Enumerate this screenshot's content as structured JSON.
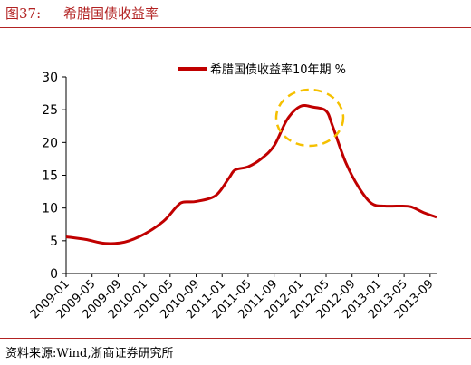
{
  "figure": {
    "label": "图37:",
    "title": "希腊国债收益率",
    "source": "资料来源:Wind,浙商证券研究所"
  },
  "colors": {
    "line": "#c00000",
    "highlight": "#f5c000",
    "accent": "#b22222"
  },
  "chart_data": {
    "type": "line",
    "title": "",
    "xlabel": "",
    "ylabel": "",
    "ylim": [
      0,
      30
    ],
    "yticks": [
      0,
      5,
      10,
      15,
      20,
      25,
      30
    ],
    "xtick_labels": [
      "2009-01",
      "2009-05",
      "2009-09",
      "2010-01",
      "2010-05",
      "2010-09",
      "2011-01",
      "2011-05",
      "2011-09",
      "2012-01",
      "2012-05",
      "2012-09",
      "2013-01",
      "2013-05",
      "2013-09"
    ],
    "x_start": "2009-01",
    "x_end": "2013-10",
    "grid": false,
    "legend_position": "top-center",
    "annotation": "dashed circle around 2012 peak",
    "series": [
      {
        "name": "希腊国债收益率10年期 %",
        "points": [
          [
            "2009-01",
            5.6
          ],
          [
            "2009-04",
            5.2
          ],
          [
            "2009-07",
            4.6
          ],
          [
            "2009-10",
            4.8
          ],
          [
            "2010-01",
            6.0
          ],
          [
            "2010-04",
            8.0
          ],
          [
            "2010-06",
            10.2
          ],
          [
            "2010-07",
            10.9
          ],
          [
            "2010-09",
            11.0
          ],
          [
            "2010-12",
            11.9
          ],
          [
            "2011-02",
            14.5
          ],
          [
            "2011-03",
            15.8
          ],
          [
            "2011-05",
            16.3
          ],
          [
            "2011-07",
            17.5
          ],
          [
            "2011-09",
            19.5
          ],
          [
            "2011-11",
            23.5
          ],
          [
            "2012-01",
            25.5
          ],
          [
            "2012-03",
            25.4
          ],
          [
            "2012-05",
            24.8
          ],
          [
            "2012-06",
            22.5
          ],
          [
            "2012-08",
            17.0
          ],
          [
            "2012-10",
            13.2
          ],
          [
            "2012-12",
            10.7
          ],
          [
            "2013-02",
            10.3
          ],
          [
            "2013-04",
            10.3
          ],
          [
            "2013-06",
            10.2
          ],
          [
            "2013-08",
            9.3
          ],
          [
            "2013-10",
            8.6
          ]
        ]
      }
    ]
  }
}
